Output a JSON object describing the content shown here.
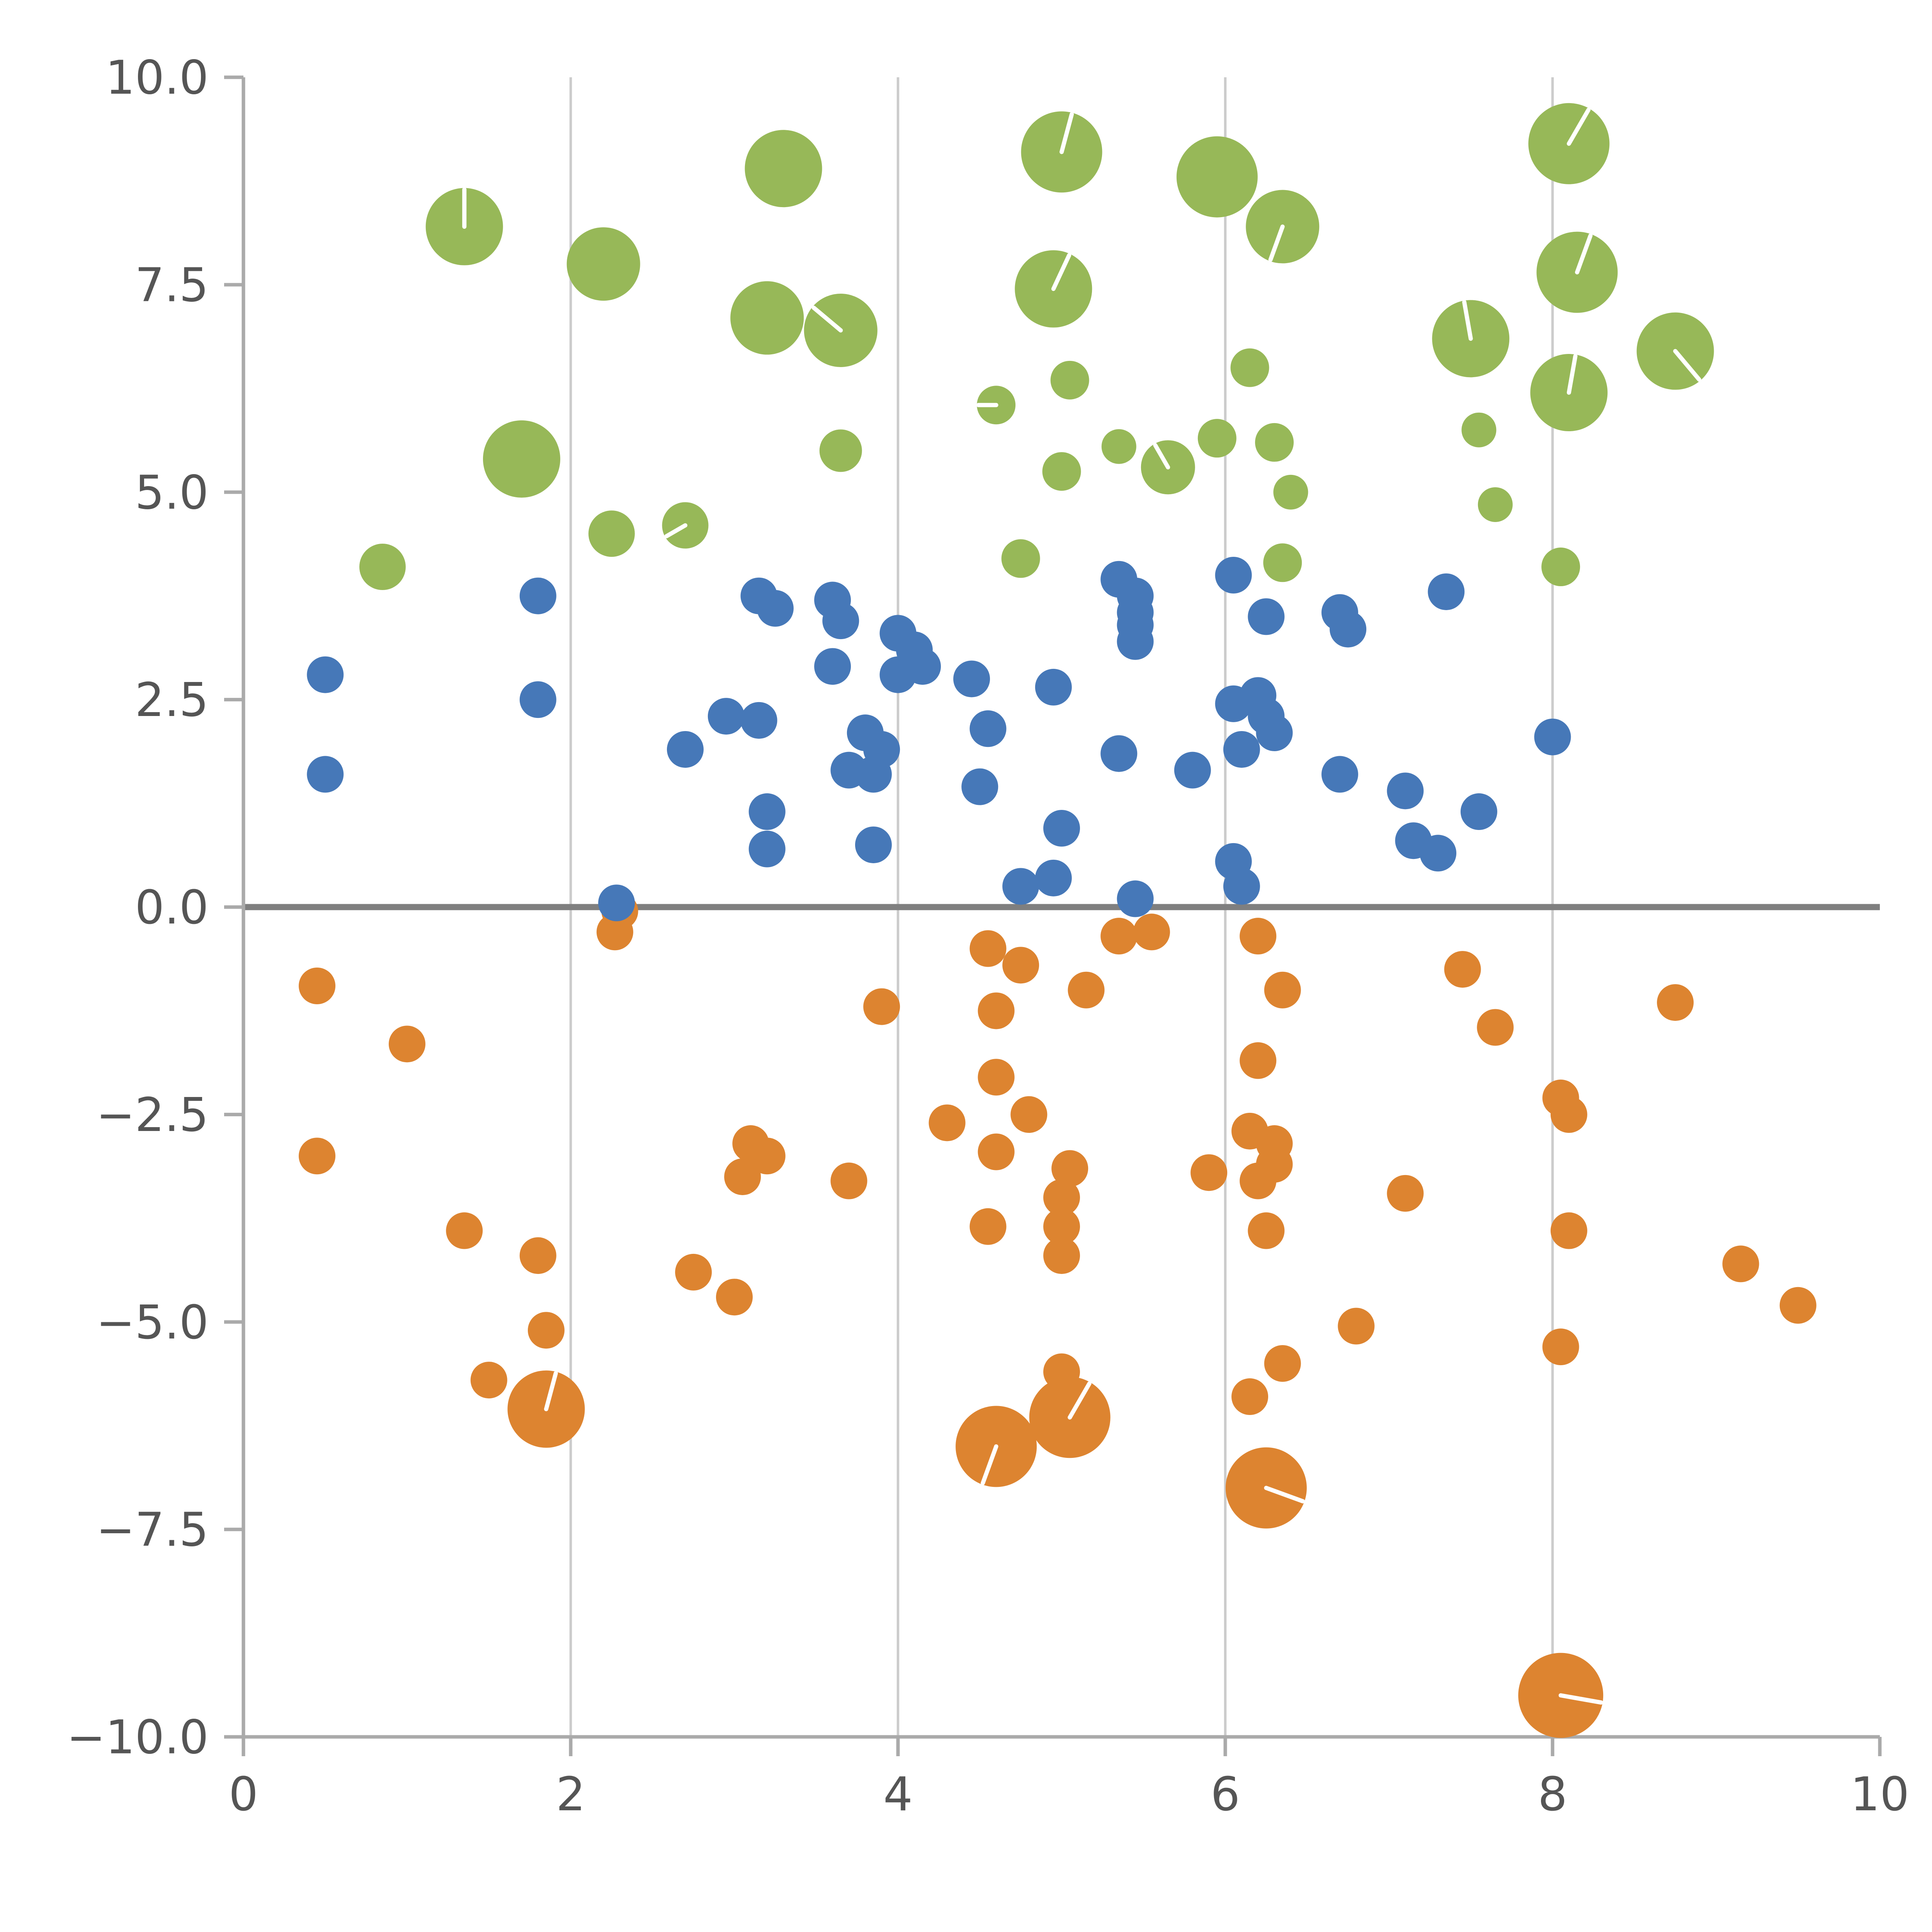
{
  "chart_data": {
    "type": "scatter",
    "title": "",
    "xlabel": "",
    "ylabel": "",
    "xlim": [
      0,
      10
    ],
    "ylim": [
      -10,
      10
    ],
    "x_ticks": {
      "values": [
        0,
        2,
        4,
        6,
        8,
        10
      ],
      "labels": [
        "0",
        "2",
        "4",
        "6",
        "8",
        "10"
      ]
    },
    "y_ticks": {
      "values": [
        10,
        7.5,
        5,
        2.5,
        0,
        -2.5,
        -5,
        -7.5,
        -10
      ],
      "labels": [
        "10.0",
        "7.5",
        "5.0",
        "2.5",
        "0.0",
        "−2.5",
        "−5.0",
        "−7.5",
        "−10.0"
      ]
    },
    "x_gridlines": [
      2,
      4,
      6,
      8
    ],
    "zero_line_y": 0,
    "grid": "vertical gridlines at x=2,4,6,8 only; bold horizontal line at y=0; no top/right spines",
    "legend": "none",
    "point_format": "[x, y, marker_radius_in_1000_unit_viewbox, optional_white_seam_angle_deg]",
    "colors": {
      "green": "#97b858",
      "blue": "#4678b8",
      "orange": "#dd8430",
      "grid": "#cccccc",
      "zero_line": "#7f7f7f",
      "spine": "#aaaaaa",
      "tick_label": "#555555",
      "background": "#ffffff",
      "marker_seam": "#ffffff"
    },
    "series": [
      {
        "name": "green-cluster-top",
        "color": "#97b858",
        "points": [
          [
            1.35,
            8.2,
            20,
            90
          ],
          [
            3.3,
            8.9,
            20
          ],
          [
            5.0,
            9.1,
            21,
            75
          ],
          [
            5.95,
            8.8,
            21
          ],
          [
            6.35,
            8.2,
            19,
            250
          ],
          [
            8.1,
            9.2,
            21,
            60
          ],
          [
            2.2,
            7.75,
            19
          ],
          [
            4.95,
            7.45,
            20,
            65
          ],
          [
            8.15,
            7.65,
            21,
            70
          ],
          [
            3.2,
            7.1,
            19
          ],
          [
            3.65,
            6.95,
            19,
            140
          ],
          [
            7.5,
            6.85,
            20,
            100
          ],
          [
            8.75,
            6.7,
            20,
            310
          ],
          [
            8.1,
            6.2,
            20,
            80
          ],
          [
            5.05,
            6.35,
            10
          ],
          [
            4.6,
            6.05,
            10,
            180
          ],
          [
            6.15,
            6.5,
            10
          ],
          [
            1.7,
            5.4,
            20
          ],
          [
            3.65,
            5.5,
            11
          ],
          [
            5.35,
            5.55,
            9
          ],
          [
            5.65,
            5.3,
            14,
            120
          ],
          [
            5.95,
            5.65,
            10
          ],
          [
            6.3,
            5.6,
            10
          ],
          [
            5.0,
            5.25,
            10
          ],
          [
            7.55,
            5.75,
            9
          ],
          [
            2.25,
            4.5,
            12
          ],
          [
            2.7,
            4.6,
            12,
            210
          ],
          [
            0.85,
            4.1,
            12
          ],
          [
            4.75,
            4.2,
            10
          ],
          [
            6.35,
            4.15,
            10
          ],
          [
            7.65,
            4.85,
            9
          ],
          [
            8.05,
            4.1,
            10
          ],
          [
            6.4,
            5.0,
            9
          ]
        ]
      },
      {
        "name": "orange-cluster-bottom",
        "color": "#dd8430",
        "points": [
          [
            0.45,
            -0.95,
            9.5
          ],
          [
            1.0,
            -1.65,
            9.5
          ],
          [
            0.45,
            -3.0,
            9.5
          ],
          [
            1.35,
            -3.9,
            9.5
          ],
          [
            1.8,
            -4.2,
            9.5
          ],
          [
            1.85,
            -5.1,
            9.5
          ],
          [
            1.5,
            -5.7,
            9.5
          ],
          [
            1.85,
            -6.05,
            20,
            75
          ],
          [
            2.3,
            -0.05,
            9.5
          ],
          [
            2.27,
            -0.3,
            9.5
          ],
          [
            2.75,
            -4.4,
            9.5
          ],
          [
            3.0,
            -4.7,
            9.5
          ],
          [
            3.1,
            -2.85,
            9.5
          ],
          [
            3.2,
            -3.0,
            9.5
          ],
          [
            3.05,
            -3.25,
            9.5
          ],
          [
            3.7,
            -3.3,
            9.5
          ],
          [
            3.9,
            -1.2,
            9.5
          ],
          [
            4.3,
            -2.6,
            9.5
          ],
          [
            4.55,
            -0.5,
            9.5
          ],
          [
            4.6,
            -1.25,
            9.5
          ],
          [
            4.6,
            -2.05,
            9.5
          ],
          [
            4.75,
            -0.7,
            9.5
          ],
          [
            4.8,
            -2.5,
            9.5
          ],
          [
            4.6,
            -2.95,
            9.5
          ],
          [
            4.55,
            -3.85,
            9.5
          ],
          [
            5.0,
            -3.5,
            9.5
          ],
          [
            5.05,
            -3.15,
            9.5
          ],
          [
            5.0,
            -3.85,
            9.5
          ],
          [
            5.0,
            -4.2,
            9.5
          ],
          [
            5.15,
            -1.0,
            9.5
          ],
          [
            5.35,
            -0.35,
            9.5
          ],
          [
            5.55,
            -0.3,
            9.5
          ],
          [
            5.0,
            -5.6,
            9.5
          ],
          [
            4.6,
            -6.5,
            21,
            250
          ],
          [
            5.05,
            -6.15,
            21,
            60
          ],
          [
            5.9,
            -3.2,
            9.5
          ],
          [
            6.2,
            -0.35,
            9.5
          ],
          [
            6.35,
            -1.0,
            9.5
          ],
          [
            6.2,
            -1.85,
            9.5
          ],
          [
            6.15,
            -2.7,
            9.5
          ],
          [
            6.3,
            -2.85,
            9.5
          ],
          [
            6.3,
            -3.1,
            9.5
          ],
          [
            6.2,
            -3.3,
            9.5
          ],
          [
            6.25,
            -3.9,
            9.5
          ],
          [
            6.15,
            -5.9,
            9.5
          ],
          [
            6.35,
            -5.5,
            9.5
          ],
          [
            6.25,
            -7.0,
            21,
            340
          ],
          [
            6.8,
            -5.05,
            9.5
          ],
          [
            7.1,
            -3.45,
            9.5
          ],
          [
            7.45,
            -0.75,
            9.5
          ],
          [
            7.65,
            -1.45,
            9.5
          ],
          [
            8.05,
            -2.3,
            9.5
          ],
          [
            8.1,
            -2.5,
            9.5
          ],
          [
            8.1,
            -3.9,
            9.5
          ],
          [
            8.05,
            -5.3,
            9.5
          ],
          [
            8.05,
            -9.5,
            22,
            350
          ],
          [
            8.75,
            -1.15,
            9.5
          ],
          [
            9.15,
            -4.3,
            9.5
          ],
          [
            9.5,
            -4.8,
            9.5
          ]
        ]
      },
      {
        "name": "blue-cluster-middle",
        "color": "#4678b8",
        "points": [
          [
            0.5,
            2.8,
            9.5
          ],
          [
            0.5,
            1.6,
            9.5
          ],
          [
            1.8,
            3.75,
            9.5
          ],
          [
            1.8,
            2.5,
            9.5
          ],
          [
            2.7,
            1.9,
            9.5
          ],
          [
            2.95,
            2.3,
            9.5
          ],
          [
            3.15,
            2.25,
            9.5
          ],
          [
            3.15,
            3.75,
            9.5
          ],
          [
            3.25,
            3.6,
            9.5
          ],
          [
            3.6,
            3.7,
            9.5
          ],
          [
            3.65,
            3.45,
            9.5
          ],
          [
            3.6,
            2.9,
            9.5
          ],
          [
            4.0,
            3.3,
            9.5
          ],
          [
            4.1,
            3.1,
            9.5
          ],
          [
            4.0,
            2.8,
            9.5
          ],
          [
            4.15,
            2.9,
            9.5
          ],
          [
            4.45,
            2.75,
            9.5
          ],
          [
            3.8,
            2.1,
            9.5
          ],
          [
            3.9,
            1.9,
            9.5
          ],
          [
            3.7,
            1.65,
            9.5
          ],
          [
            3.85,
            1.6,
            9.5
          ],
          [
            4.55,
            2.15,
            9.5
          ],
          [
            4.5,
            1.45,
            9.5
          ],
          [
            3.2,
            1.15,
            9.5
          ],
          [
            3.2,
            0.7,
            9.5
          ],
          [
            3.85,
            0.75,
            9.5
          ],
          [
            4.75,
            0.25,
            9.5
          ],
          [
            4.95,
            0.35,
            9.5
          ],
          [
            5.0,
            0.95,
            9.5
          ],
          [
            5.45,
            0.1,
            9.5
          ],
          [
            5.35,
            1.85,
            9.5
          ],
          [
            4.95,
            2.65,
            9.5
          ],
          [
            5.35,
            3.95,
            9.5
          ],
          [
            5.45,
            3.75,
            9.5
          ],
          [
            5.45,
            3.55,
            9.5
          ],
          [
            5.45,
            3.4,
            9.5
          ],
          [
            5.45,
            3.2,
            9.5
          ],
          [
            6.05,
            4.0,
            9.5
          ],
          [
            6.25,
            3.5,
            9.5
          ],
          [
            6.05,
            2.45,
            9.5
          ],
          [
            6.2,
            2.55,
            9.5
          ],
          [
            6.25,
            2.3,
            9.5
          ],
          [
            6.3,
            2.1,
            9.5
          ],
          [
            5.8,
            1.65,
            9.5
          ],
          [
            6.1,
            1.9,
            9.5
          ],
          [
            6.05,
            0.55,
            9.5
          ],
          [
            6.1,
            0.25,
            9.5
          ],
          [
            6.7,
            3.55,
            9.5
          ],
          [
            6.75,
            3.35,
            9.5
          ],
          [
            6.7,
            1.6,
            9.5
          ],
          [
            7.1,
            1.4,
            9.5
          ],
          [
            7.15,
            0.8,
            9.5
          ],
          [
            7.35,
            3.8,
            9.5
          ],
          [
            7.3,
            0.65,
            9.5
          ],
          [
            7.55,
            1.15,
            9.5
          ],
          [
            8.0,
            2.05,
            9.5
          ],
          [
            2.28,
            0.05,
            9.5
          ]
        ]
      }
    ]
  }
}
